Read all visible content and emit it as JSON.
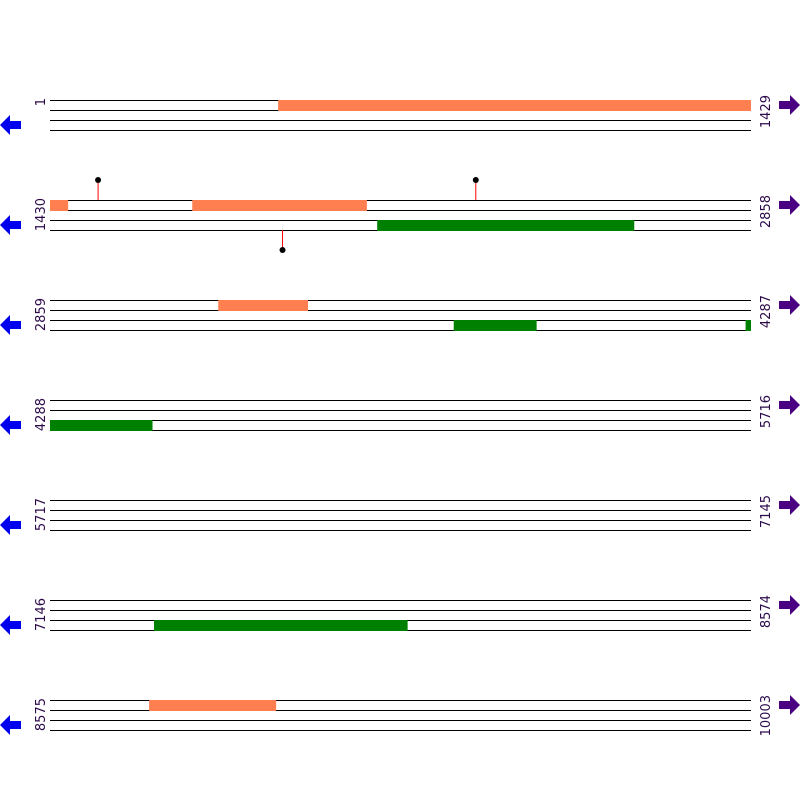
{
  "colors": {
    "line": "#000000",
    "forward_feature": "#ff7f50",
    "reverse_feature": "#008000",
    "marker_stem": "#ff0000",
    "marker_head": "#000000",
    "left_arrow": "#0000ee",
    "right_arrow": "#4b0082",
    "coord_text": "#2b0a4a"
  },
  "icons": {
    "left": "arrow-left-icon",
    "right": "arrow-right-icon"
  },
  "chart_data": {
    "type": "sequence-map",
    "bp_per_row": 1429,
    "rows": [
      {
        "start": "1",
        "end": "1429",
        "features": [
          {
            "strand": "forward",
            "from": 466,
            "to": 1429
          }
        ],
        "markers": []
      },
      {
        "start": "1430",
        "end": "2858",
        "features": [
          {
            "strand": "forward",
            "from": 1430,
            "to": 1466
          },
          {
            "strand": "forward",
            "from": 1720,
            "to": 2075
          },
          {
            "strand": "reverse",
            "from": 2097,
            "to": 2620
          }
        ],
        "markers": [
          {
            "position": 1528,
            "side": "top"
          },
          {
            "position": 2298,
            "side": "top"
          },
          {
            "position": 1904,
            "side": "bottom"
          }
        ]
      },
      {
        "start": "2859",
        "end": "4287",
        "features": [
          {
            "strand": "forward",
            "from": 3202,
            "to": 3384
          },
          {
            "strand": "reverse",
            "from": 3682,
            "to": 3850
          },
          {
            "strand": "reverse",
            "from": 4277,
            "to": 4287
          }
        ],
        "markers": []
      },
      {
        "start": "4288",
        "end": "5716",
        "features": [
          {
            "strand": "reverse",
            "from": 4288,
            "to": 4496
          }
        ],
        "markers": []
      },
      {
        "start": "5717",
        "end": "7145",
        "features": [],
        "markers": []
      },
      {
        "start": "7146",
        "end": "8574",
        "features": [
          {
            "strand": "reverse",
            "from": 7358,
            "to": 7874
          }
        ],
        "markers": []
      },
      {
        "start": "8575",
        "end": "10003",
        "features": [
          {
            "strand": "forward",
            "from": 8777,
            "to": 9035
          }
        ],
        "markers": []
      }
    ]
  }
}
